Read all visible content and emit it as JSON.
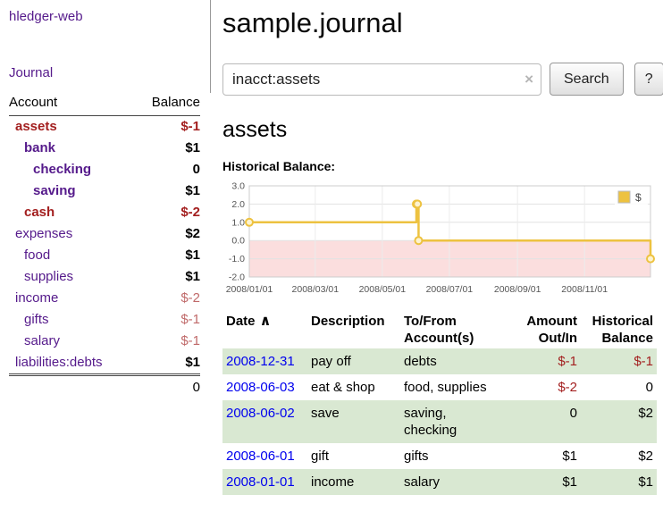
{
  "colors": {
    "link_purple": "#551A8B",
    "link_blue": "#0000EE",
    "negative": "#a31f1f",
    "negative_muted": "#c06a6a",
    "row_green": "#d9e8d2"
  },
  "app_title": "hledger-web",
  "sidebar": {
    "journal_link": "Journal",
    "accounts_header": {
      "account": "Account",
      "balance": "Balance"
    },
    "accounts": [
      {
        "name": "assets",
        "balance": "$-1",
        "indent": 0,
        "bold": true,
        "negative": true
      },
      {
        "name": "bank",
        "balance": "$1",
        "indent": 1,
        "bold": true
      },
      {
        "name": "checking",
        "balance": "0",
        "indent": 2,
        "bold": true
      },
      {
        "name": "saving",
        "balance": "$1",
        "indent": 2,
        "bold": true
      },
      {
        "name": "cash",
        "balance": "$-2",
        "indent": 1,
        "bold": true,
        "negative": true
      },
      {
        "name": "expenses",
        "balance": "$2",
        "indent": 0
      },
      {
        "name": "food",
        "balance": "$1",
        "indent": 1
      },
      {
        "name": "supplies",
        "balance": "$1",
        "indent": 1
      },
      {
        "name": "income",
        "balance": "$-2",
        "indent": 0,
        "muted": true
      },
      {
        "name": "gifts",
        "balance": "$-1",
        "indent": 1,
        "muted": true
      },
      {
        "name": "salary",
        "balance": "$-1",
        "indent": 1,
        "muted": true
      },
      {
        "name": "liabilities:debts",
        "balance": "$1",
        "indent": 0
      }
    ],
    "total": "0"
  },
  "header": {
    "title": "sample.journal"
  },
  "search": {
    "value": "inacct:assets",
    "clear_icon": "×",
    "button_label": "Search",
    "help_label": "?"
  },
  "account_page": {
    "title": "assets",
    "chart_label": "Historical Balance:"
  },
  "chart_data": {
    "type": "line",
    "title": "Historical Balance",
    "legend_label": "$",
    "legend_position": "top-right",
    "grid": true,
    "series_color": "#EDC240",
    "negative_region_color": "#fbdede",
    "ylim": [
      -2.0,
      3.0
    ],
    "y_ticks": [
      3.0,
      2.0,
      1.0,
      0.0,
      -1.0,
      -2.0
    ],
    "x_ticks": [
      "2008/01/01",
      "2008/03/01",
      "2008/05/01",
      "2008/07/01",
      "2008/09/01",
      "2008/11/01"
    ],
    "x_range": [
      "2008-01-01",
      "2008-12-31"
    ],
    "series": [
      {
        "name": "$",
        "step": true,
        "points": [
          {
            "date": "2008-01-01",
            "value": 1
          },
          {
            "date": "2008-06-01",
            "value": 2
          },
          {
            "date": "2008-06-02",
            "value": 2
          },
          {
            "date": "2008-06-03",
            "value": 0
          },
          {
            "date": "2008-12-31",
            "value": -1
          }
        ]
      }
    ]
  },
  "register": {
    "headers": [
      {
        "label": "Date",
        "align": "left",
        "sort_icon": "∧"
      },
      {
        "label": "Description",
        "align": "left"
      },
      {
        "label": "To/From\nAccount(s)",
        "align": "left"
      },
      {
        "label": "Amount\nOut/In",
        "align": "right"
      },
      {
        "label": "Historical\nBalance",
        "align": "right"
      }
    ],
    "rows": [
      {
        "date": "2008-12-31",
        "description": "pay off",
        "accounts": "debts",
        "amount": "$-1",
        "amount_negative": true,
        "balance": "$-1",
        "balance_negative": true
      },
      {
        "date": "2008-06-03",
        "description": "eat & shop",
        "accounts": "food, supplies",
        "amount": "$-2",
        "amount_negative": true,
        "balance": "0",
        "balance_negative": false
      },
      {
        "date": "2008-06-02",
        "description": "save",
        "accounts": "saving,\nchecking",
        "amount": "0",
        "amount_negative": false,
        "balance": "$2",
        "balance_negative": false
      },
      {
        "date": "2008-06-01",
        "description": "gift",
        "accounts": "gifts",
        "amount": "$1",
        "amount_negative": false,
        "balance": "$2",
        "balance_negative": false
      },
      {
        "date": "2008-01-01",
        "description": "income",
        "accounts": "salary",
        "amount": "$1",
        "amount_negative": false,
        "balance": "$1",
        "balance_negative": false
      }
    ]
  }
}
